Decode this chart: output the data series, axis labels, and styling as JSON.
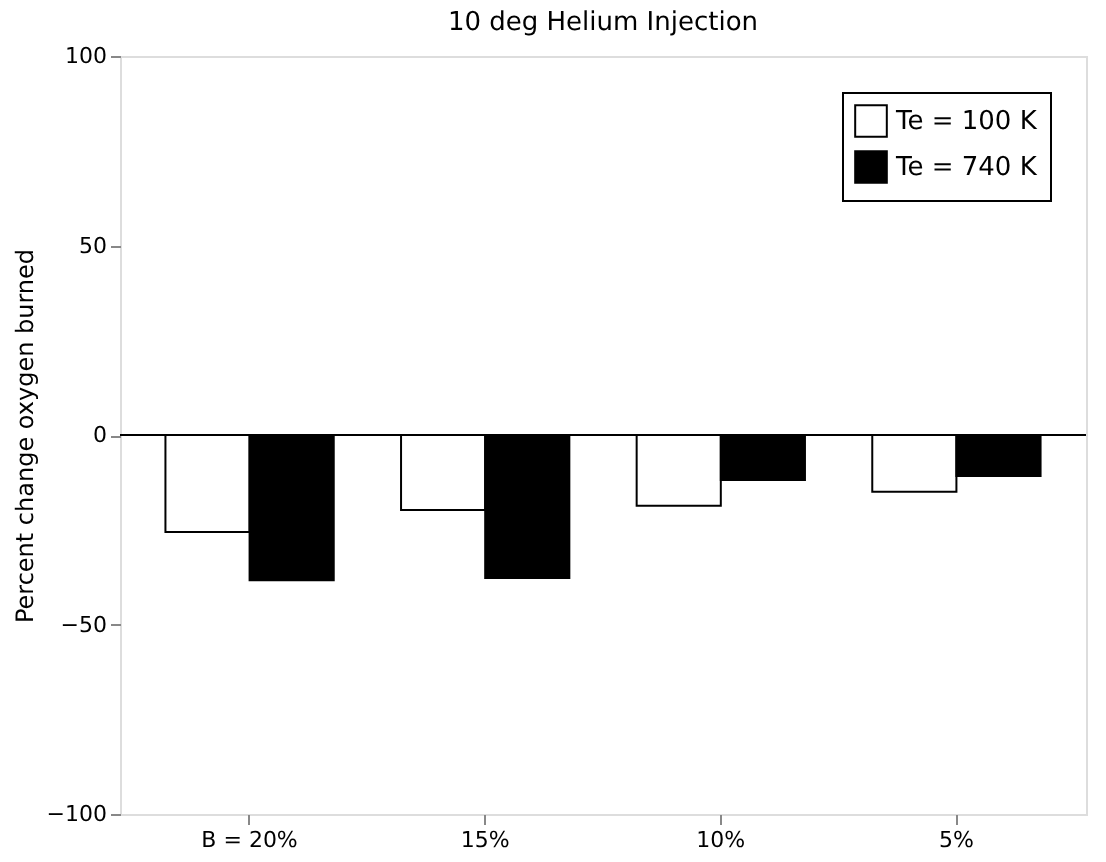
{
  "chart_data": {
    "type": "bar",
    "title": "10 deg Helium Injection",
    "ylabel": "Percent change oxygen burned",
    "categories": [
      "B = 20%",
      "15%",
      "10%",
      "5%"
    ],
    "series": [
      {
        "name": "Te = 100 K",
        "color": "#ffffff",
        "values": [
          -25.6,
          -19.8,
          -18.7,
          -15
        ]
      },
      {
        "name": "Te = 740 K",
        "color": "#000000",
        "values": [
          -38.3,
          -37.7,
          -11.9,
          -10.8
        ]
      }
    ],
    "ylim": [
      -100,
      100
    ],
    "yticks": [
      {
        "value": -100,
        "label": "−100"
      },
      {
        "value": -50,
        "label": "−50"
      },
      0,
      50,
      100
    ],
    "ref_lines": [
      {
        "axis": "y",
        "value": 0
      }
    ],
    "grid": false,
    "legend": "top right"
  }
}
